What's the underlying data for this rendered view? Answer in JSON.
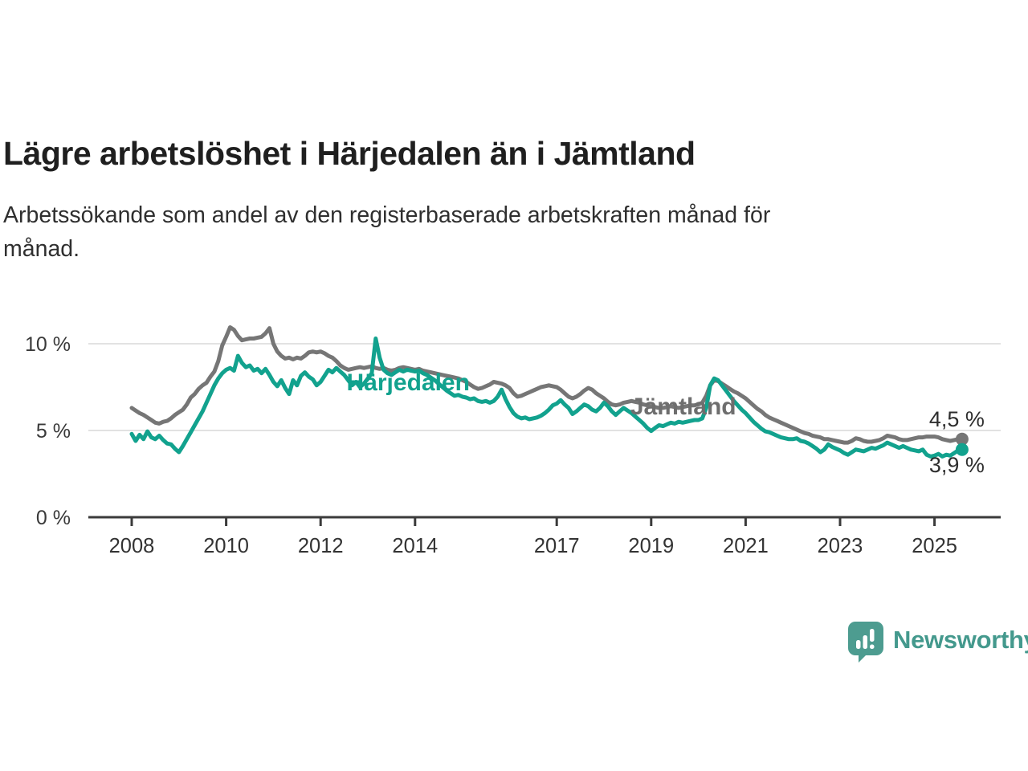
{
  "title": "Lägre arbetslöshet i Härjedalen än i Jämtland",
  "subtitle": {
    "lines": [
      "Arbetssökande som andel av den registerbaserade arbetskraften månad för",
      "månad."
    ]
  },
  "footer": {
    "brand": "Newsworthy",
    "brand_color": "#44998d",
    "icon": "newsworthy-speech-bubble-bar-chart"
  },
  "chart_data": {
    "type": "line",
    "title": "Lägre arbetslöshet i Härjedalen än i Jämtland",
    "xlabel": "",
    "ylabel": "Arbetssökande som andel av den registerbaserade arbetskraften",
    "grid": "horizontal",
    "legend_position": "inline-annotations",
    "x_start": {
      "year": 2008,
      "month": 1
    },
    "frequency": "monthly",
    "x_ticks": [
      "2008",
      "2010",
      "2012",
      "2014",
      "2017",
      "2019",
      "2021",
      "2023",
      "2025"
    ],
    "x_tick_years": [
      2008,
      2010,
      2012,
      2014,
      2017,
      2019,
      2021,
      2023,
      2025
    ],
    "ylim": [
      0,
      11.6
    ],
    "y_ticks": [
      {
        "value": 0,
        "label": "0 %"
      },
      {
        "value": 5,
        "label": "5 %"
      },
      {
        "value": 10,
        "label": "10 %"
      }
    ],
    "colors": {
      "axis": "#3b3b3b",
      "grid": "#d9d9d9",
      "tick_label": "#333333",
      "value_label": "#2e2e2e"
    },
    "annotations": [
      {
        "text": "Härjedalen",
        "year": 2012.55,
        "value": 7.31,
        "color": "#12a28e"
      },
      {
        "text": "Jämtland",
        "year": 2018.56,
        "value": 5.93,
        "color": "#6e6e6e"
      }
    ],
    "series": [
      {
        "name": "Jämtland",
        "color": "#767676",
        "end_label": "4,5 %",
        "end_value": 4.5,
        "end_label_offset": [
          28,
          -16
        ],
        "values": [
          6.3,
          6.15,
          6.0,
          5.9,
          5.75,
          5.6,
          5.45,
          5.4,
          5.5,
          5.55,
          5.7,
          5.9,
          6.05,
          6.2,
          6.5,
          6.9,
          7.1,
          7.4,
          7.6,
          7.75,
          8.1,
          8.4,
          9.0,
          9.9,
          10.4,
          10.95,
          10.8,
          10.45,
          10.2,
          10.25,
          10.3,
          10.3,
          10.35,
          10.4,
          10.6,
          10.9,
          10.0,
          9.55,
          9.3,
          9.15,
          9.2,
          9.1,
          9.2,
          9.15,
          9.3,
          9.5,
          9.55,
          9.5,
          9.55,
          9.45,
          9.3,
          9.2,
          9.0,
          8.75,
          8.6,
          8.5,
          8.55,
          8.6,
          8.65,
          8.6,
          8.65,
          8.7,
          8.6,
          8.55,
          8.6,
          8.5,
          8.45,
          8.5,
          8.6,
          8.65,
          8.6,
          8.55,
          8.5,
          8.55,
          8.45,
          8.4,
          8.35,
          8.3,
          8.25,
          8.2,
          8.15,
          8.1,
          8.05,
          8.0,
          7.9,
          7.8,
          7.65,
          7.5,
          7.4,
          7.45,
          7.55,
          7.65,
          7.8,
          7.75,
          7.7,
          7.6,
          7.45,
          7.15,
          6.95,
          7.0,
          7.1,
          7.2,
          7.3,
          7.4,
          7.5,
          7.55,
          7.6,
          7.55,
          7.5,
          7.35,
          7.15,
          6.95,
          6.85,
          6.95,
          7.1,
          7.3,
          7.45,
          7.35,
          7.15,
          7.0,
          6.85,
          6.65,
          6.5,
          6.45,
          6.5,
          6.6,
          6.65,
          6.7,
          6.65,
          6.6,
          6.5,
          6.45,
          6.4,
          6.35,
          6.3,
          6.3,
          6.35,
          6.4,
          6.35,
          6.3,
          6.35,
          6.4,
          6.45,
          6.45,
          6.5,
          6.6,
          7.0,
          7.6,
          7.9,
          7.85,
          7.7,
          7.55,
          7.4,
          7.25,
          7.15,
          7.0,
          6.85,
          6.65,
          6.45,
          6.25,
          6.1,
          5.9,
          5.75,
          5.65,
          5.55,
          5.45,
          5.35,
          5.25,
          5.15,
          5.05,
          4.95,
          4.85,
          4.8,
          4.7,
          4.65,
          4.6,
          4.5,
          4.5,
          4.45,
          4.4,
          4.35,
          4.3,
          4.3,
          4.4,
          4.55,
          4.5,
          4.4,
          4.35,
          4.35,
          4.4,
          4.45,
          4.55,
          4.7,
          4.65,
          4.6,
          4.5,
          4.45,
          4.45,
          4.5,
          4.55,
          4.6,
          4.6,
          4.65,
          4.65,
          4.65,
          4.6,
          4.5,
          4.45,
          4.4,
          4.45,
          4.5,
          4.5
        ]
      },
      {
        "name": "Härjedalen",
        "color": "#12a28e",
        "end_label": "3,9 %",
        "end_value": 3.9,
        "end_label_offset": [
          28,
          28
        ],
        "values": [
          4.8,
          4.4,
          4.75,
          4.5,
          4.95,
          4.6,
          4.5,
          4.7,
          4.45,
          4.25,
          4.2,
          3.95,
          3.75,
          4.1,
          4.5,
          4.9,
          5.3,
          5.7,
          6.1,
          6.6,
          7.1,
          7.6,
          8.0,
          8.3,
          8.5,
          8.6,
          8.45,
          9.3,
          8.9,
          8.65,
          8.75,
          8.45,
          8.55,
          8.3,
          8.55,
          8.2,
          7.8,
          7.55,
          7.9,
          7.45,
          7.1,
          7.9,
          7.6,
          8.15,
          8.35,
          8.1,
          7.95,
          7.6,
          7.8,
          8.15,
          8.5,
          8.35,
          8.6,
          8.4,
          8.2,
          7.9,
          7.6,
          7.8,
          7.5,
          7.7,
          8.0,
          8.3,
          10.3,
          9.2,
          8.5,
          8.3,
          8.2,
          8.35,
          8.5,
          8.4,
          8.5,
          8.45,
          8.4,
          8.45,
          8.3,
          8.2,
          8.05,
          7.9,
          7.7,
          7.5,
          7.3,
          7.15,
          7.0,
          7.05,
          6.95,
          6.9,
          6.8,
          6.85,
          6.7,
          6.65,
          6.7,
          6.6,
          6.7,
          6.95,
          7.35,
          6.8,
          6.35,
          6.0,
          5.8,
          5.7,
          5.75,
          5.65,
          5.7,
          5.75,
          5.85,
          6.0,
          6.2,
          6.45,
          6.55,
          6.75,
          6.5,
          6.3,
          5.95,
          6.1,
          6.3,
          6.5,
          6.4,
          6.2,
          6.1,
          6.3,
          6.6,
          6.4,
          6.1,
          5.9,
          6.1,
          6.3,
          6.15,
          6.0,
          5.8,
          5.6,
          5.4,
          5.15,
          4.97,
          5.15,
          5.3,
          5.25,
          5.35,
          5.45,
          5.4,
          5.5,
          5.45,
          5.5,
          5.55,
          5.6,
          5.6,
          5.7,
          6.3,
          7.6,
          8.0,
          7.9,
          7.6,
          7.3,
          7.0,
          6.7,
          6.45,
          6.2,
          6.0,
          5.75,
          5.5,
          5.3,
          5.1,
          4.95,
          4.9,
          4.8,
          4.7,
          4.6,
          4.55,
          4.5,
          4.5,
          4.55,
          4.4,
          4.35,
          4.25,
          4.1,
          3.95,
          3.75,
          3.9,
          4.2,
          4.05,
          3.95,
          3.85,
          3.7,
          3.6,
          3.75,
          3.9,
          3.85,
          3.8,
          3.9,
          4.0,
          3.95,
          4.05,
          4.15,
          4.3,
          4.2,
          4.1,
          4.0,
          4.1,
          4.0,
          3.9,
          3.85,
          3.8,
          3.9,
          3.6,
          3.5,
          3.55,
          3.65,
          3.5,
          3.6,
          3.55,
          3.7,
          3.85,
          3.9
        ]
      }
    ]
  }
}
